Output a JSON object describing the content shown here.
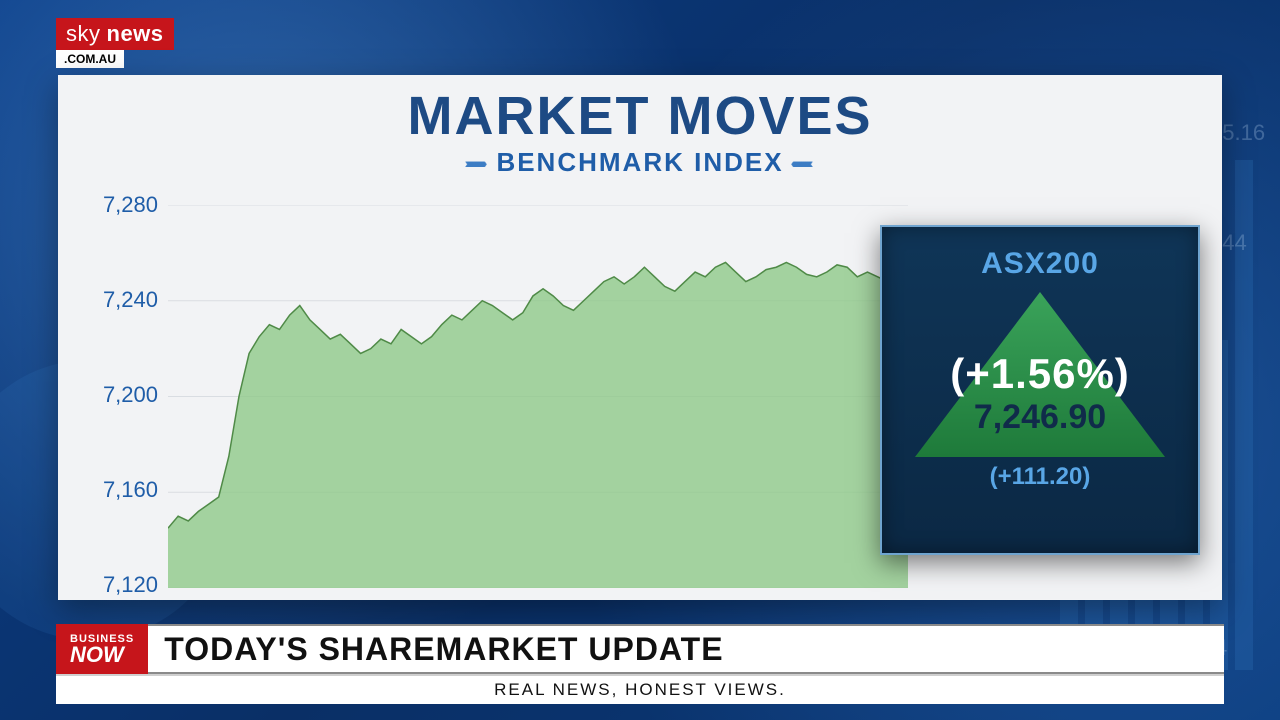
{
  "logo": {
    "word1": "sky",
    "word2": "news",
    "domain": ".COM.AU"
  },
  "card": {
    "title": "MARKET MOVES",
    "title_fontsize": 54,
    "subtitle": "BENCHMARK INDEX",
    "subtitle_fontsize": 26,
    "title_color": "#1d4a84",
    "subtitle_color": "#1f5da8",
    "bg_color": "#f2f3f5"
  },
  "chart": {
    "type": "area",
    "ylim": [
      7120,
      7280
    ],
    "ytick_step": 40,
    "yticks": [
      "7,280",
      "7,240",
      "7,200",
      "7,160",
      "7,120"
    ],
    "ylabel_color": "#1f5da8",
    "ylabel_fontsize": 22,
    "line_color": "#4f8a47",
    "fill_color": "#8fc98a",
    "fill_opacity": 0.8,
    "line_width": 1.5,
    "grid_color": "#d9dde2",
    "data_x_range": [
      0,
      1
    ],
    "values": [
      7145,
      7150,
      7148,
      7152,
      7155,
      7158,
      7175,
      7200,
      7218,
      7225,
      7230,
      7228,
      7234,
      7238,
      7232,
      7228,
      7224,
      7226,
      7222,
      7218,
      7220,
      7224,
      7222,
      7228,
      7225,
      7222,
      7225,
      7230,
      7234,
      7232,
      7236,
      7240,
      7238,
      7235,
      7232,
      7235,
      7242,
      7245,
      7242,
      7238,
      7236,
      7240,
      7244,
      7248,
      7250,
      7247,
      7250,
      7254,
      7250,
      7246,
      7244,
      7248,
      7252,
      7250,
      7254,
      7256,
      7252,
      7248,
      7250,
      7253,
      7254,
      7256,
      7254,
      7251,
      7250,
      7252,
      7255,
      7254,
      7250,
      7252,
      7250,
      7248,
      7248,
      7250
    ]
  },
  "asx": {
    "name": "ASX200",
    "percent": "(+1.56%)",
    "value": "7,246.90",
    "delta": "(+111.20)",
    "box_bg_top": "#0f3557",
    "box_bg_bottom": "#0b2844",
    "box_border": "#6fa4cf",
    "name_color": "#59a6e6",
    "arrow_fill_top": "#3aa35a",
    "arrow_fill_bottom": "#1e7a3a",
    "pct_color": "#ffffff",
    "pct_fontsize": 42,
    "value_color": "#0d2b4a",
    "value_fontsize": 34,
    "delta_color": "#59a6e6",
    "delta_fontsize": 24
  },
  "lower": {
    "tag_line1": "BUSINESS",
    "tag_line2": "NOW",
    "headline": "TODAY'S SHAREMARKET UPDATE",
    "headline_fontsize": 32,
    "strap": "REAL NEWS, HONEST VIEWS.",
    "tag_bg": "#c6151b",
    "bar_bg": "#ffffff"
  },
  "background": {
    "base": "#0a3a7a",
    "bars_color": "#3f8cd8",
    "bars_opacity": 0.25
  }
}
